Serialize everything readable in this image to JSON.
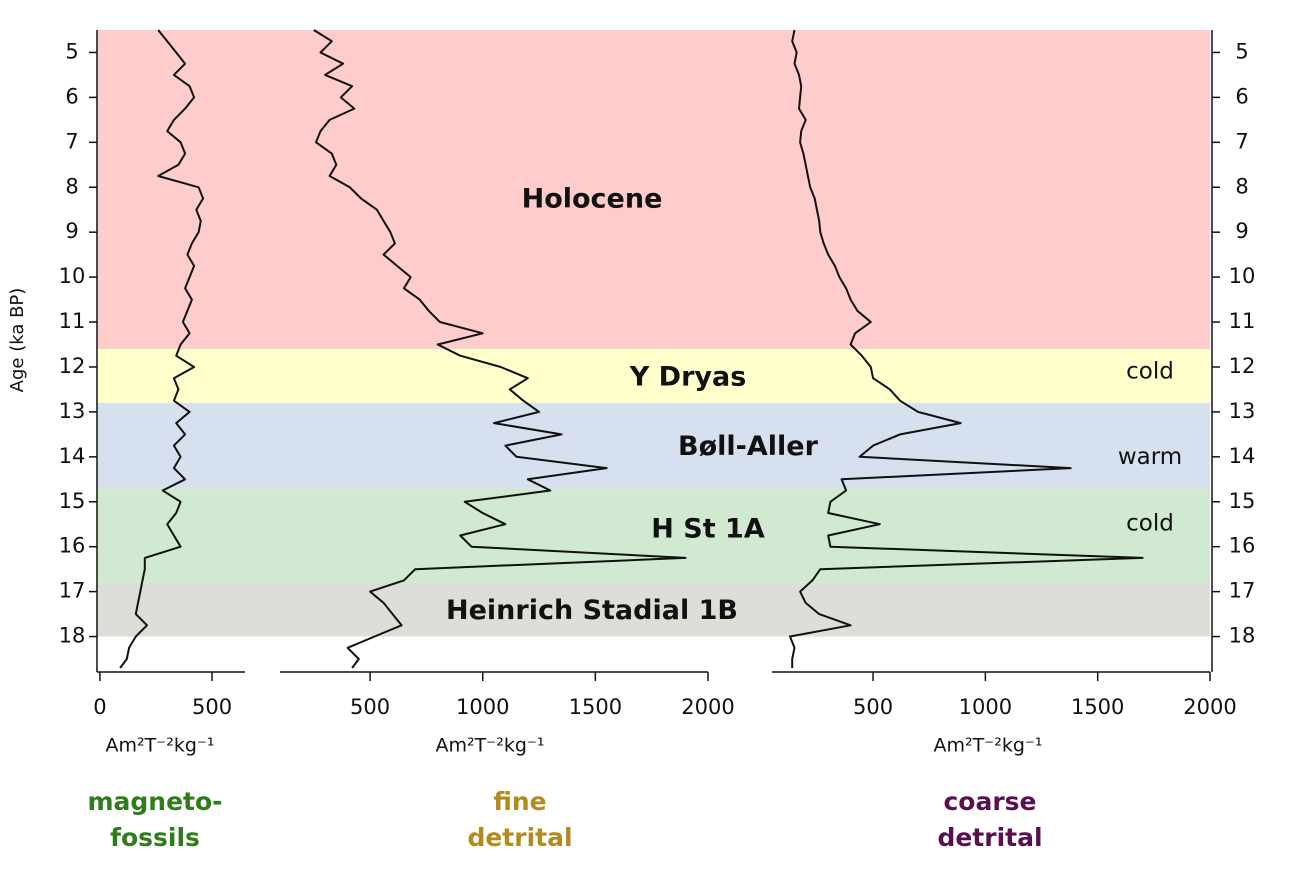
{
  "chart_data": {
    "type": "line",
    "ylabel": "Age (ka BP)",
    "ylim": [
      4.5,
      18.7
    ],
    "yticks": [
      5,
      6,
      7,
      8,
      9,
      10,
      11,
      12,
      13,
      14,
      15,
      16,
      17,
      18
    ],
    "y": [
      4.5,
      4.75,
      5,
      5.25,
      5.5,
      5.75,
      6,
      6.25,
      6.5,
      6.75,
      7,
      7.25,
      7.5,
      7.75,
      8,
      8.25,
      8.5,
      8.75,
      9,
      9.25,
      9.5,
      9.75,
      10,
      10.25,
      10.5,
      10.75,
      11,
      11.25,
      11.5,
      11.75,
      12,
      12.25,
      12.5,
      12.75,
      13,
      13.25,
      13.5,
      13.75,
      14,
      14.25,
      14.5,
      14.75,
      15,
      15.25,
      15.5,
      15.75,
      16,
      16.25,
      16.5,
      16.75,
      17,
      17.25,
      17.5,
      17.75,
      18,
      18.25,
      18.5,
      18.7
    ],
    "bands": [
      {
        "label": "Holocene",
        "from": 4.5,
        "to": 11.6,
        "color": "#ffcccc"
      },
      {
        "label": "Y Dryas",
        "from": 11.6,
        "to": 12.8,
        "color": "#ffffcc",
        "climate": "cold"
      },
      {
        "label": "Bøll-Aller",
        "from": 12.8,
        "to": 14.7,
        "color": "#d6e0ef",
        "climate": "warm"
      },
      {
        "label": "H St 1A",
        "from": 14.7,
        "to": 16.8,
        "color": "#d1e8d1",
        "climate": "cold"
      },
      {
        "label": "Heinrich Stadial 1B",
        "from": 16.8,
        "to": 18.0,
        "color": "#dcdfd8"
      }
    ],
    "series": [
      {
        "name": [
          "magneto-",
          "fossils"
        ],
        "color": "#2e7d1a",
        "line_color": "#111111",
        "xlabel": "Am²T⁻²kg⁻¹",
        "xlim": [
          -13,
          647
        ],
        "xticks": [
          0,
          500
        ],
        "values": [
          260,
          300,
          340,
          380,
          330,
          400,
          420,
          380,
          330,
          300,
          360,
          380,
          350,
          260,
          440,
          460,
          430,
          450,
          440,
          410,
          390,
          420,
          400,
          380,
          410,
          390,
          370,
          400,
          360,
          340,
          420,
          330,
          350,
          330,
          400,
          340,
          380,
          330,
          360,
          330,
          380,
          280,
          360,
          340,
          300,
          330,
          360,
          200,
          200,
          190,
          180,
          170,
          160,
          210,
          160,
          130,
          120,
          90
        ]
      },
      {
        "name": [
          "fine",
          "detrital"
        ],
        "color": "#b38a1d",
        "line_color": "#111111",
        "xlabel": "Am²T⁻²kg⁻¹",
        "xlim": [
          100,
          2000
        ],
        "xticks": [
          500,
          1000,
          1500,
          2000
        ],
        "values": [
          250,
          330,
          280,
          380,
          300,
          420,
          370,
          430,
          320,
          280,
          260,
          330,
          350,
          320,
          410,
          460,
          530,
          560,
          590,
          610,
          560,
          620,
          680,
          650,
          720,
          760,
          810,
          1000,
          800,
          900,
          1080,
          1200,
          1120,
          1180,
          1250,
          1050,
          1350,
          1100,
          1150,
          1550,
          1200,
          1300,
          920,
          1000,
          1100,
          900,
          950,
          1900,
          700,
          650,
          500,
          560,
          600,
          640,
          520,
          400,
          450,
          420
        ]
      },
      {
        "name": [
          "coarse",
          "detrital"
        ],
        "color": "#5a1050",
        "line_color": "#111111",
        "xlabel": "Am²T⁻²kg⁻¹",
        "xlim": [
          50,
          2000
        ],
        "xticks": [
          500,
          1000,
          1500,
          2000
        ],
        "values": [
          150,
          140,
          160,
          150,
          170,
          180,
          175,
          170,
          200,
          180,
          175,
          190,
          200,
          210,
          220,
          240,
          250,
          260,
          265,
          280,
          300,
          330,
          350,
          380,
          400,
          430,
          490,
          420,
          400,
          450,
          490,
          500,
          575,
          620,
          700,
          890,
          620,
          500,
          440,
          1380,
          360,
          380,
          310,
          300,
          530,
          300,
          310,
          1700,
          265,
          230,
          175,
          200,
          260,
          400,
          130,
          150,
          140,
          140
        ]
      }
    ]
  }
}
